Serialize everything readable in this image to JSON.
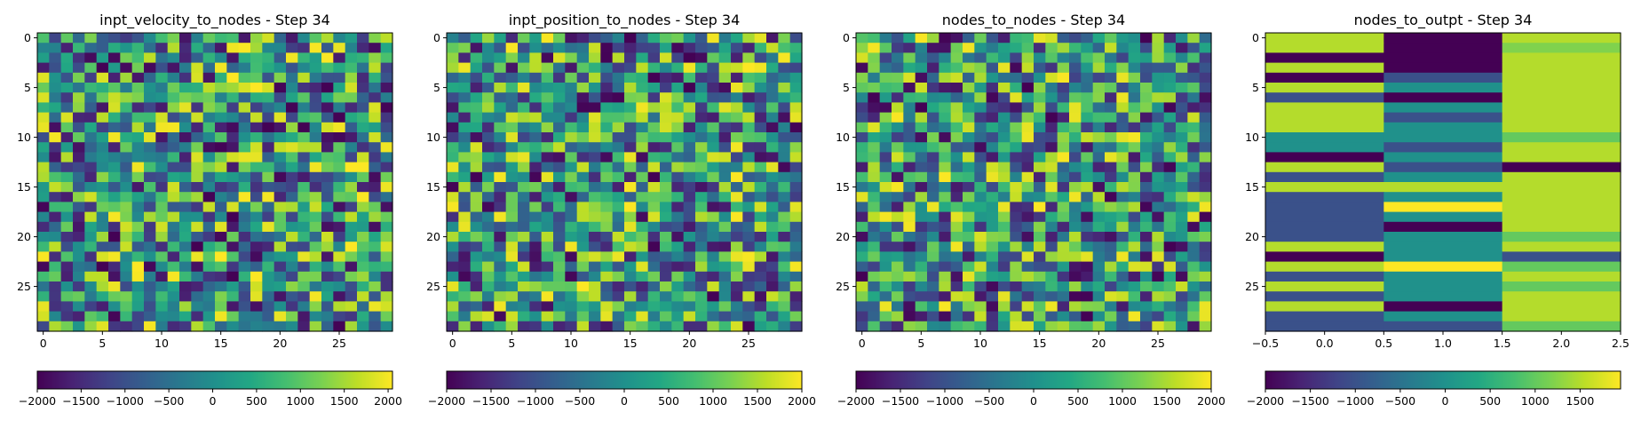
{
  "chart_data": [
    {
      "type": "heatmap",
      "title": "inpt_velocity_to_nodes - Step 34",
      "colormap": "viridis",
      "rows": 30,
      "cols": 30,
      "vmin": -2000,
      "vmax": 2050,
      "x_ticks": [
        "0",
        "5",
        "10",
        "15",
        "20",
        "25"
      ],
      "y_ticks": [
        "0",
        "5",
        "10",
        "15",
        "20",
        "25"
      ],
      "colorbar_ticks": [
        "−2000",
        "−1500",
        "−1000",
        "−500",
        "0",
        "500",
        "1000",
        "1500",
        "2000"
      ],
      "colorbar_values": [
        -2000,
        -1500,
        -1000,
        -500,
        0,
        500,
        1000,
        1500,
        2000
      ],
      "seed": 1234
    },
    {
      "type": "heatmap",
      "title": "inpt_position_to_nodes - Step 34",
      "colormap": "viridis",
      "rows": 30,
      "cols": 30,
      "vmin": -2000,
      "vmax": 2000,
      "x_ticks": [
        "0",
        "5",
        "10",
        "15",
        "20",
        "25"
      ],
      "y_ticks": [
        "0",
        "5",
        "10",
        "15",
        "20",
        "25"
      ],
      "colorbar_ticks": [
        "−2000",
        "−1500",
        "−1000",
        "−500",
        "0",
        "500",
        "1000",
        "1500",
        "2000"
      ],
      "colorbar_values": [
        -2000,
        -1500,
        -1000,
        -500,
        0,
        500,
        1000,
        1500,
        2000
      ],
      "seed": 5678
    },
    {
      "type": "heatmap",
      "title": "nodes_to_nodes - Step 34",
      "colormap": "viridis",
      "rows": 30,
      "cols": 30,
      "vmin": -2000,
      "vmax": 2000,
      "x_ticks": [
        "0",
        "5",
        "10",
        "15",
        "20",
        "25"
      ],
      "y_ticks": [
        "0",
        "5",
        "10",
        "15",
        "20",
        "25"
      ],
      "colorbar_ticks": [
        "−2000",
        "−1500",
        "−1000",
        "−500",
        "0",
        "500",
        "1000",
        "1500",
        "2000"
      ],
      "colorbar_values": [
        -2000,
        -1500,
        -1000,
        -500,
        0,
        500,
        1000,
        1500,
        2000
      ],
      "seed": 9012
    },
    {
      "type": "heatmap",
      "title": "nodes_to_outpt - Step 34",
      "colormap": "viridis",
      "rows": 30,
      "cols": 3,
      "vmin": -2000,
      "vmax": 1950,
      "x_ticks": [
        "−0.5",
        "0.0",
        "0.5",
        "1.0",
        "1.5",
        "2.0",
        "2.5"
      ],
      "x_tick_values": [
        -0.5,
        0.0,
        0.5,
        1.0,
        1.5,
        2.0,
        2.5
      ],
      "y_ticks": [
        "0",
        "5",
        "10",
        "15",
        "20",
        "25"
      ],
      "colorbar_ticks": [
        "−2000",
        "−1500",
        "−1000",
        "−500",
        "0",
        "500",
        "1000",
        "1500"
      ],
      "colorbar_values": [
        -2000,
        -1500,
        -1000,
        -500,
        0,
        500,
        1000,
        1500
      ],
      "values": [
        [
          1500,
          -2000,
          1500
        ],
        [
          1500,
          -2000,
          1200
        ],
        [
          -2000,
          -2000,
          1500
        ],
        [
          1500,
          -2000,
          1500
        ],
        [
          -2000,
          -1000,
          1500
        ],
        [
          1500,
          0,
          1500
        ],
        [
          -1000,
          -2000,
          1500
        ],
        [
          1500,
          0,
          1500
        ],
        [
          1500,
          -1000,
          1500
        ],
        [
          1500,
          0,
          1500
        ],
        [
          0,
          0,
          1000
        ],
        [
          0,
          -1000,
          1500
        ],
        [
          -2000,
          0,
          1500
        ],
        [
          1500,
          -1000,
          -2000
        ],
        [
          -1000,
          0,
          1500
        ],
        [
          1500,
          1500,
          1500
        ],
        [
          -1000,
          0,
          1500
        ],
        [
          -1000,
          2000,
          1500
        ],
        [
          -1000,
          0,
          1500
        ],
        [
          -1000,
          -2000,
          1500
        ],
        [
          -1000,
          0,
          1000
        ],
        [
          1500,
          0,
          1500
        ],
        [
          -2000,
          0,
          -1000
        ],
        [
          1500,
          2000,
          1000
        ],
        [
          -1000,
          0,
          1500
        ],
        [
          1500,
          0,
          1000
        ],
        [
          -1000,
          0,
          1500
        ],
        [
          1500,
          -2000,
          1500
        ],
        [
          -1000,
          0,
          1500
        ],
        [
          -1000,
          -1000,
          1000
        ]
      ]
    }
  ]
}
